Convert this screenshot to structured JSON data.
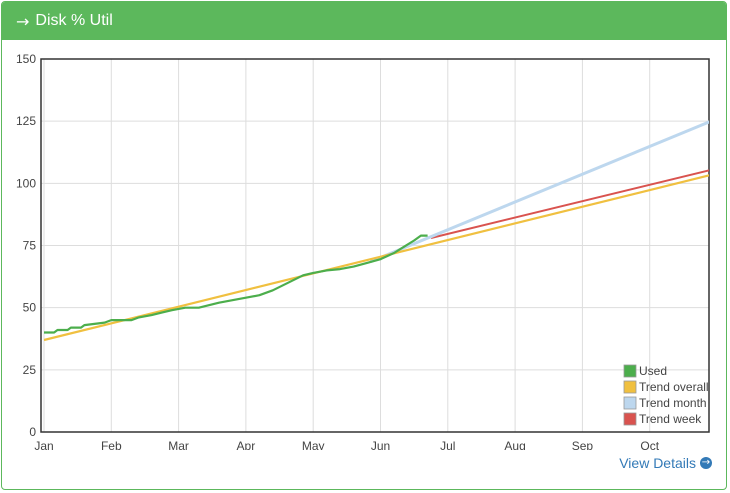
{
  "panel": {
    "title": "Disk % Util",
    "arrow_icon": "arrow-right-icon",
    "view_details": "View Details",
    "view_details_icon": "circle-arrow-right-icon"
  },
  "chart_data": {
    "type": "line",
    "title": "Disk % Util",
    "ylim": [
      0,
      150
    ],
    "yticks": [
      0,
      25,
      50,
      75,
      100,
      125,
      150
    ],
    "xlim": [
      0,
      10
    ],
    "xticks": [
      {
        "label": "Jan",
        "x": 0
      },
      {
        "label": "Feb",
        "x": 1
      },
      {
        "label": "Mar",
        "x": 2
      },
      {
        "label": "Apr",
        "x": 3
      },
      {
        "label": "May",
        "x": 4
      },
      {
        "label": "Jun",
        "x": 5
      },
      {
        "label": "Jul",
        "x": 6
      },
      {
        "label": "Aug",
        "x": 7
      },
      {
        "label": "Sep",
        "x": 8
      },
      {
        "label": "Oct",
        "x": 9
      }
    ],
    "grid": true,
    "legend_position": "bottom-right",
    "series": [
      {
        "name": "Used",
        "color": "#4cae4c",
        "points": [
          [
            0,
            40
          ],
          [
            0.15,
            40
          ],
          [
            0.2,
            41
          ],
          [
            0.35,
            41
          ],
          [
            0.4,
            42
          ],
          [
            0.55,
            42
          ],
          [
            0.6,
            43
          ],
          [
            0.9,
            44
          ],
          [
            1.0,
            45
          ],
          [
            1.3,
            45
          ],
          [
            1.4,
            46
          ],
          [
            1.6,
            47
          ],
          [
            1.75,
            48
          ],
          [
            1.9,
            49
          ],
          [
            2.1,
            50
          ],
          [
            2.3,
            50
          ],
          [
            2.45,
            51
          ],
          [
            2.6,
            52
          ],
          [
            2.8,
            53
          ],
          [
            3.0,
            54
          ],
          [
            3.2,
            55
          ],
          [
            3.4,
            57
          ],
          [
            3.55,
            59
          ],
          [
            3.7,
            61
          ],
          [
            3.85,
            63
          ],
          [
            4.0,
            64
          ],
          [
            4.2,
            65
          ],
          [
            4.4,
            65.5
          ],
          [
            4.6,
            66.5
          ],
          [
            4.8,
            68
          ],
          [
            5.0,
            69.5
          ],
          [
            5.2,
            72
          ],
          [
            5.35,
            74.5
          ],
          [
            5.5,
            77
          ],
          [
            5.6,
            79
          ],
          [
            5.7,
            79
          ]
        ]
      },
      {
        "name": "Trend overall",
        "color": "#f0c040",
        "points": [
          [
            0,
            37
          ],
          [
            10,
            104
          ]
        ]
      },
      {
        "name": "Trend month",
        "color": "#bdd7ee",
        "points": [
          [
            4.85,
            68.5
          ],
          [
            10,
            126
          ]
        ]
      },
      {
        "name": "Trend week",
        "color": "#d9534f",
        "points": [
          [
            5.75,
            78
          ],
          [
            10,
            106
          ]
        ]
      }
    ]
  }
}
